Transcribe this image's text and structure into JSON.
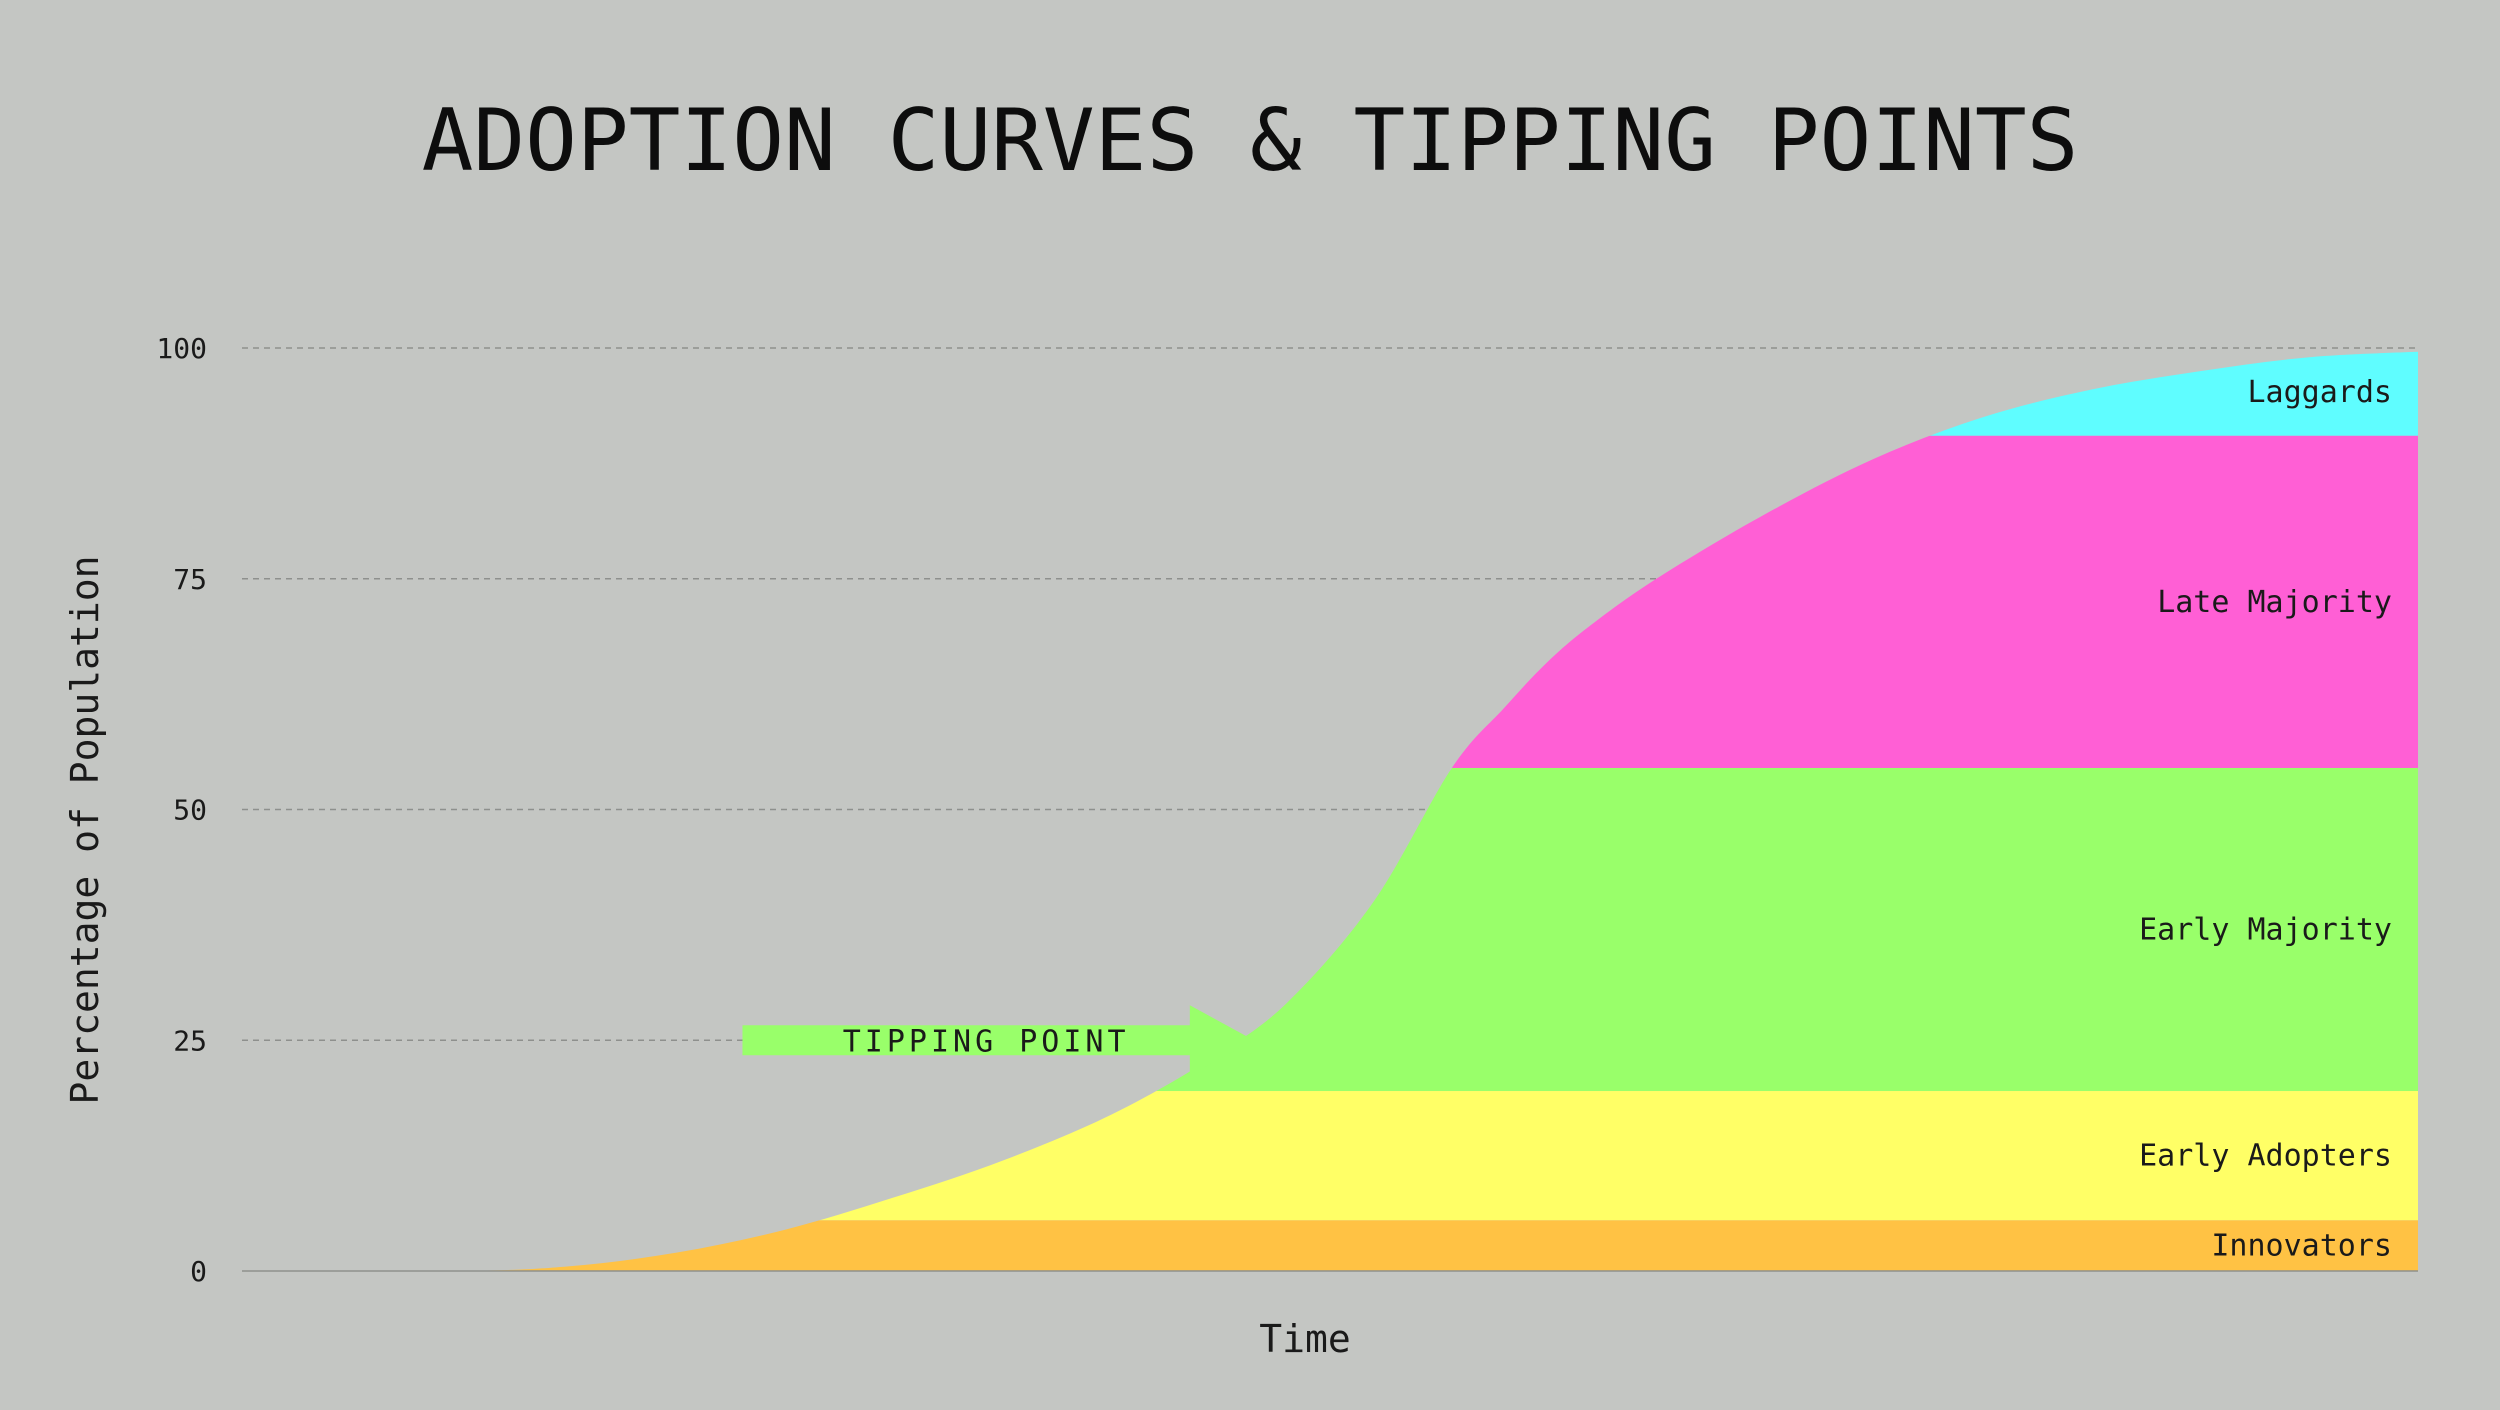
{
  "chart_data": {
    "type": "area",
    "title": "ADOPTION CURVES & TIPPING POINTS",
    "xlabel": "Time",
    "ylabel": "Percentage of Population",
    "ylim": [
      0,
      100
    ],
    "yticks": [
      "0",
      "25",
      "50",
      "75",
      "100"
    ],
    "grid": "horizontal dashed",
    "curve": {
      "name": "",
      "x": [
        0,
        10,
        15,
        20,
        25,
        30,
        35,
        40,
        44.5,
        48,
        52,
        55.6,
        58,
        60,
        62,
        65,
        70,
        75,
        80,
        85,
        90,
        95,
        100
      ],
      "y": [
        0,
        0,
        0.5,
        2,
        4.5,
        8,
        12,
        17,
        23,
        29,
        40,
        54.5,
        61,
        66,
        70,
        75,
        82,
        88,
        92.5,
        95.5,
        97.5,
        99,
        99.6
      ]
    },
    "segments": [
      {
        "name": "Innovators",
        "from": 0,
        "to": 5.5,
        "color": "#ffc244"
      },
      {
        "name": "Early Adopters",
        "from": 5.5,
        "to": 19.5,
        "color": "#ffff66"
      },
      {
        "name": "Early Majority",
        "from": 19.5,
        "to": 54.5,
        "color": "#99ff6a"
      },
      {
        "name": "Late Majority",
        "from": 54.5,
        "to": 90.5,
        "color": "#ff5fd5"
      },
      {
        "name": "Laggards",
        "from": 90.5,
        "to": 100,
        "color": "#5ffdff"
      }
    ],
    "annotations": [
      {
        "text": "TIPPING POINT",
        "y": 25,
        "x_start": 23,
        "x_end": 46.5,
        "color": "#99ff6a",
        "style": "arrow"
      }
    ]
  },
  "colors": {
    "background": "#c4c6c3",
    "gridline": "#8e908d",
    "text": "#1a1a1a"
  }
}
